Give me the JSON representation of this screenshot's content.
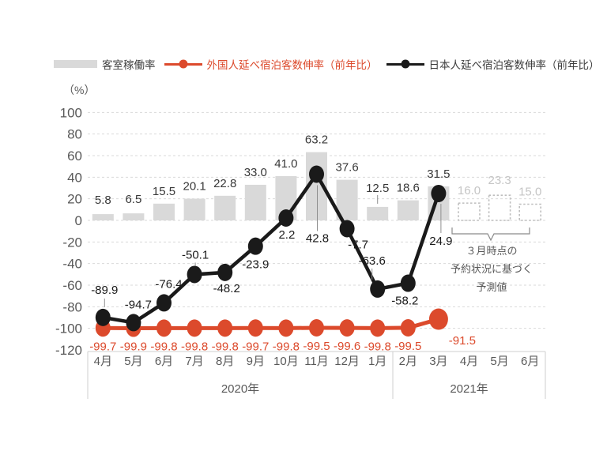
{
  "legend": {
    "items": [
      {
        "label": "客室稼働率",
        "swatch": "bar",
        "color": "#d9d9d9",
        "text_color": "#3d3d3d"
      },
      {
        "label": "外国人延べ宿泊客数伸率（前年比）",
        "swatch": "line",
        "color": "#dc4a2c",
        "text_color": "#dc4a2c"
      },
      {
        "label": "日本人延べ宿泊客数伸率（前年比）",
        "swatch": "line",
        "color": "#1a1a1a",
        "text_color": "#3d3d3d"
      }
    ]
  },
  "axes": {
    "unit_label": "（%）"
  },
  "annotation": {
    "lines": [
      "３月時点の",
      "予約状況に基づく",
      "予測値"
    ]
  },
  "chart_data": {
    "type": "bar",
    "subtype": "combo bar + two line series",
    "title": "",
    "xlabel": "",
    "ylabel": "（%）",
    "ylim": [
      -120,
      100
    ],
    "ytick_step": 20,
    "grid": "dashed horizontal",
    "legend_position": "top",
    "categories": [
      "4月",
      "5月",
      "6月",
      "7月",
      "8月",
      "9月",
      "10月",
      "11月",
      "12月",
      "1月",
      "2月",
      "3月",
      "4月",
      "5月",
      "6月"
    ],
    "year_groups": [
      {
        "label": "2020年",
        "start_index": 0,
        "end_index": 9
      },
      {
        "label": "2021年",
        "start_index": 10,
        "end_index": 14
      }
    ],
    "series": [
      {
        "name": "客室稼働率",
        "type": "bar",
        "color": "#d9d9d9",
        "values": [
          5.8,
          6.5,
          15.5,
          20.1,
          22.8,
          33.0,
          41.0,
          63.2,
          37.6,
          12.5,
          18.6,
          31.5,
          16.0,
          23.3,
          15.0
        ],
        "forecast_from_index": 12
      },
      {
        "name": "外国人延べ宿泊客数伸率（前年比）",
        "type": "line",
        "color": "#dc4a2c",
        "values": [
          -99.7,
          -99.9,
          -99.8,
          -99.8,
          -99.8,
          -99.7,
          -99.8,
          -99.5,
          -99.6,
          -99.8,
          -99.5,
          -91.5
        ]
      },
      {
        "name": "日本人延べ宿泊客数伸率（前年比）",
        "type": "line",
        "color": "#1a1a1a",
        "values": [
          -89.9,
          -94.7,
          -76.4,
          -50.1,
          -48.2,
          -23.9,
          2.2,
          42.8,
          -7.7,
          -63.6,
          -58.2,
          24.9
        ]
      }
    ],
    "forecast_note": "３月時点の予約状況に基づく予測値"
  }
}
